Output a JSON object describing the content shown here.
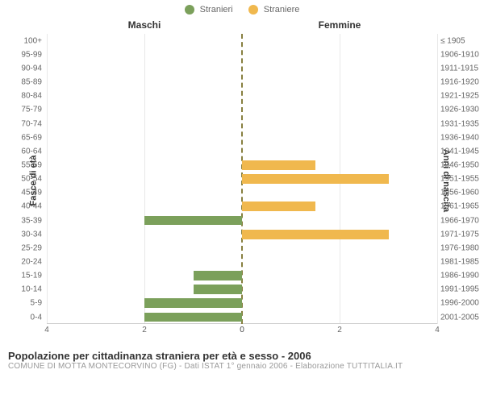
{
  "legend": {
    "items": [
      {
        "label": "Stranieri",
        "color": "#7ba05b"
      },
      {
        "label": "Straniere",
        "color": "#f0b84e"
      }
    ]
  },
  "chart": {
    "type": "pyramid-bar",
    "left_title": "Maschi",
    "right_title": "Femmine",
    "y_label_left": "Fasce di età",
    "y_label_right": "Anni di nascita",
    "x_max": 4,
    "x_ticks": [
      0,
      2,
      4
    ],
    "grid_color": "#e8e8e8",
    "center_line_color": "#888040",
    "background_color": "#ffffff",
    "male_color": "#7ba05b",
    "female_color": "#f0b84e",
    "rows": [
      {
        "age": "100+",
        "birth": "≤ 1905",
        "m": 0,
        "f": 0
      },
      {
        "age": "95-99",
        "birth": "1906-1910",
        "m": 0,
        "f": 0
      },
      {
        "age": "90-94",
        "birth": "1911-1915",
        "m": 0,
        "f": 0
      },
      {
        "age": "85-89",
        "birth": "1916-1920",
        "m": 0,
        "f": 0
      },
      {
        "age": "80-84",
        "birth": "1921-1925",
        "m": 0,
        "f": 0
      },
      {
        "age": "75-79",
        "birth": "1926-1930",
        "m": 0,
        "f": 0
      },
      {
        "age": "70-74",
        "birth": "1931-1935",
        "m": 0,
        "f": 0
      },
      {
        "age": "65-69",
        "birth": "1936-1940",
        "m": 0,
        "f": 0
      },
      {
        "age": "60-64",
        "birth": "1941-1945",
        "m": 0,
        "f": 0
      },
      {
        "age": "55-59",
        "birth": "1946-1950",
        "m": 0,
        "f": 1.5
      },
      {
        "age": "50-54",
        "birth": "1951-1955",
        "m": 0,
        "f": 3
      },
      {
        "age": "45-49",
        "birth": "1956-1960",
        "m": 0,
        "f": 0
      },
      {
        "age": "40-44",
        "birth": "1961-1965",
        "m": 0,
        "f": 1.5
      },
      {
        "age": "35-39",
        "birth": "1966-1970",
        "m": 2,
        "f": 0
      },
      {
        "age": "30-34",
        "birth": "1971-1975",
        "m": 0,
        "f": 3
      },
      {
        "age": "25-29",
        "birth": "1976-1980",
        "m": 0,
        "f": 0
      },
      {
        "age": "20-24",
        "birth": "1981-1985",
        "m": 0,
        "f": 0
      },
      {
        "age": "15-19",
        "birth": "1986-1990",
        "m": 1,
        "f": 0
      },
      {
        "age": "10-14",
        "birth": "1991-1995",
        "m": 1,
        "f": 0
      },
      {
        "age": "5-9",
        "birth": "1996-2000",
        "m": 2,
        "f": 0
      },
      {
        "age": "0-4",
        "birth": "2001-2005",
        "m": 2,
        "f": 0
      }
    ]
  },
  "footer": {
    "title": "Popolazione per cittadinanza straniera per età e sesso - 2006",
    "subtitle": "COMUNE DI MOTTA MONTECORVINO (FG) - Dati ISTAT 1° gennaio 2006 - Elaborazione TUTTITALIA.IT"
  }
}
